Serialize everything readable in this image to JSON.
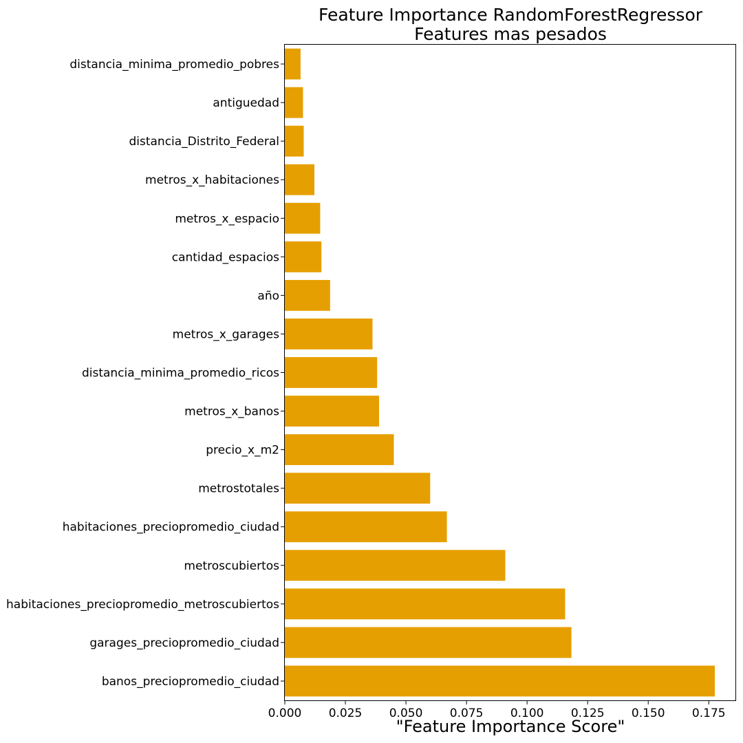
{
  "chart_data": {
    "type": "bar",
    "orientation": "horizontal",
    "title_lines": [
      "Feature Importance RandomForestRegressor",
      "Features mas pesados"
    ],
    "xlabel": "\"Feature Importance Score\"",
    "ylabel": "",
    "xlim": [
      0,
      0.186
    ],
    "xticks": [
      0.0,
      0.025,
      0.05,
      0.075,
      0.1,
      0.125,
      0.15,
      0.175
    ],
    "xtick_labels": [
      "0.000",
      "0.025",
      "0.050",
      "0.075",
      "0.100",
      "0.125",
      "0.150",
      "0.175"
    ],
    "grid": false,
    "bar_color": "#E69F00",
    "categories": [
      "distancia_minima_promedio_pobres",
      "antiguedad",
      "distancia_Distrito_Federal",
      "metros_x_habitaciones",
      "metros_x_espacio",
      "cantidad_espacios",
      "año",
      "metros_x_garages",
      "distancia_minima_promedio_ricos",
      "metros_x_banos",
      "precio_x_m2",
      "metrostotales",
      "habitaciones_preciopromedio_ciudad",
      "metroscubiertos",
      "habitaciones_preciopromedio_metroscubiertos",
      "garages_preciopromedio_ciudad",
      "banos_preciopromedio_ciudad"
    ],
    "values": [
      0.0065,
      0.0075,
      0.0078,
      0.0122,
      0.0146,
      0.0151,
      0.0187,
      0.0362,
      0.0381,
      0.0389,
      0.045,
      0.06,
      0.0669,
      0.091,
      0.1157,
      0.1183,
      0.1775
    ]
  }
}
